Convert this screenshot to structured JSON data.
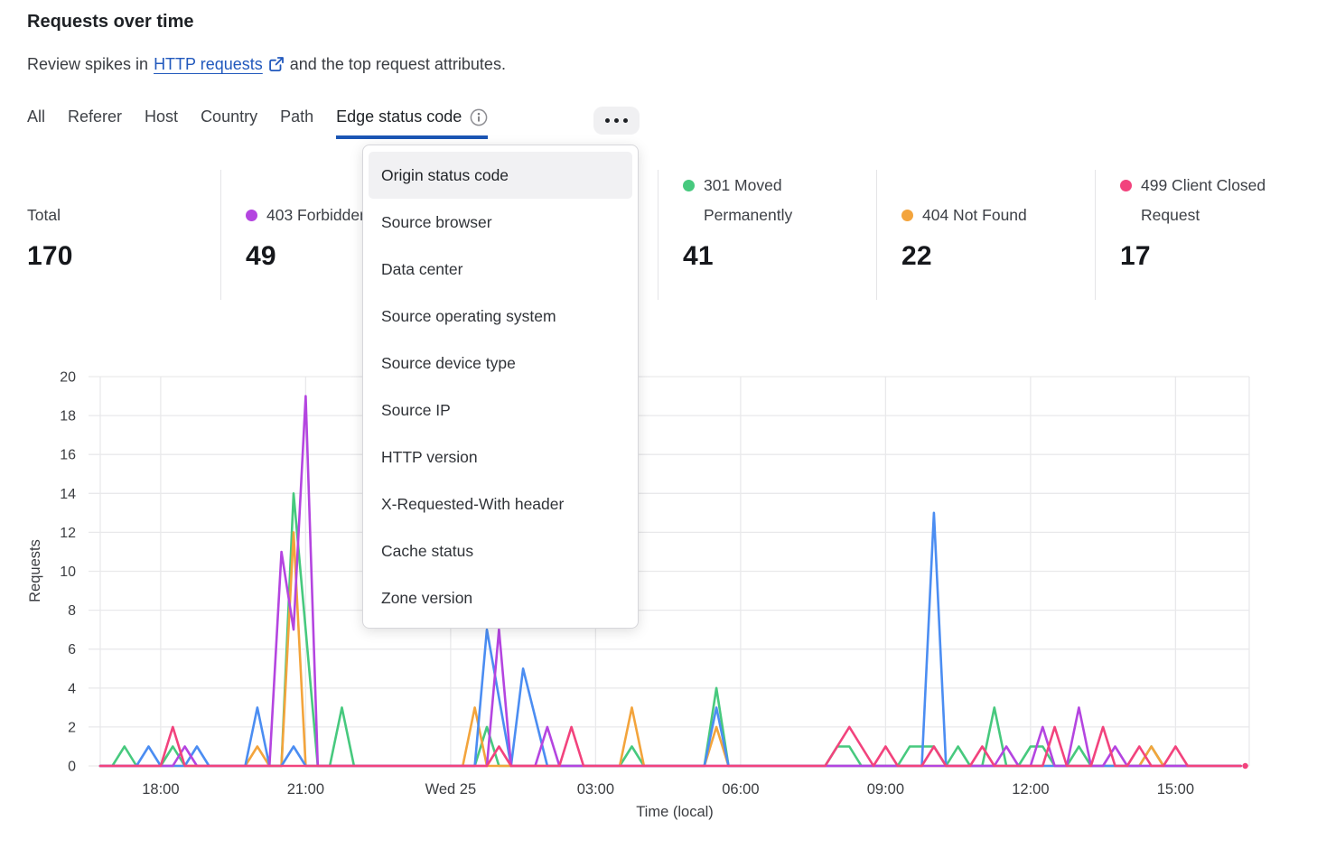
{
  "header": {
    "title": "Requests over time",
    "subtitle_prefix": "Review spikes in",
    "subtitle_link": "HTTP requests",
    "subtitle_suffix": "and the top request attributes."
  },
  "tabs": {
    "items": [
      "All",
      "Referer",
      "Host",
      "Country",
      "Path"
    ],
    "active_label": "Edge status code",
    "icons": {
      "active_info": "info-icon",
      "overflow": "more-horizontal-icon"
    }
  },
  "stats": {
    "columns": [
      {
        "label": "Total",
        "value": "170",
        "color": null
      },
      {
        "label": "403 Forbidden",
        "value": "49",
        "color": "#b445e0"
      },
      {
        "label": "301 Moved Permanently",
        "value": "41",
        "color": "#47c97e"
      },
      {
        "label": "404 Not Found",
        "value": "22",
        "color": "#f3a43c"
      },
      {
        "label": "499 Client Closed Request",
        "value": "17",
        "color": "#f2437d"
      }
    ]
  },
  "menu": {
    "active_index": 0,
    "items": [
      "Origin status code",
      "Source browser",
      "Data center",
      "Source operating system",
      "Source device type",
      "Source IP",
      "HTTP version",
      "X-Requested-With header",
      "Cache status",
      "Zone version"
    ]
  },
  "colors": {
    "accent_blue": "#1b55b4",
    "link_blue": "#2259bd",
    "grid": "#e9e9eb",
    "axis_text": "#3b3d41"
  },
  "chart_data": {
    "type": "line",
    "title": "Requests over time",
    "grid": true,
    "legend_position": "top-stats-row",
    "x_axis": {
      "label": "Time (local)",
      "start_time": "16:45",
      "end_t_hours": 23.6,
      "ticks": [
        {
          "t": 1.25,
          "label": "18:00"
        },
        {
          "t": 4.25,
          "label": "21:00"
        },
        {
          "t": 7.25,
          "label": "Wed 25"
        },
        {
          "t": 10.25,
          "label": "03:00"
        },
        {
          "t": 13.25,
          "label": "06:00"
        },
        {
          "t": 16.25,
          "label": "09:00"
        },
        {
          "t": 19.25,
          "label": "12:00"
        },
        {
          "t": 22.25,
          "label": "15:00"
        }
      ]
    },
    "y_axis": {
      "label": "Requests",
      "min": 0,
      "max": 20,
      "step": 2
    },
    "series": [
      {
        "id": "301",
        "label": "301 Moved Permanently",
        "color": "#47c97e",
        "points": [
          [
            0.25,
            0
          ],
          [
            0.5,
            1
          ],
          [
            0.75,
            0
          ],
          [
            1.25,
            0
          ],
          [
            1.5,
            1
          ],
          [
            1.75,
            0
          ],
          [
            3.75,
            0
          ],
          [
            4,
            14
          ],
          [
            4.5,
            0
          ],
          [
            4.75,
            0
          ],
          [
            5,
            3
          ],
          [
            5.25,
            0
          ],
          [
            7.75,
            0
          ],
          [
            8,
            2
          ],
          [
            8.25,
            0
          ],
          [
            10.75,
            0
          ],
          [
            11,
            1
          ],
          [
            11.25,
            0
          ],
          [
            12.5,
            0
          ],
          [
            12.75,
            4
          ],
          [
            13,
            0
          ],
          [
            15,
            0
          ],
          [
            15.25,
            1
          ],
          [
            15.5,
            1
          ],
          [
            15.75,
            0
          ],
          [
            16.5,
            0
          ],
          [
            16.75,
            1
          ],
          [
            17.25,
            1
          ],
          [
            17.5,
            0
          ],
          [
            17.75,
            1
          ],
          [
            18,
            0
          ],
          [
            18.25,
            0
          ],
          [
            18.5,
            3
          ],
          [
            18.75,
            0
          ],
          [
            19,
            0
          ],
          [
            19.25,
            1
          ],
          [
            19.5,
            1
          ],
          [
            19.75,
            0
          ],
          [
            20,
            0
          ],
          [
            20.25,
            1
          ],
          [
            20.5,
            0
          ],
          [
            21.5,
            0
          ],
          [
            21.75,
            1
          ],
          [
            22,
            0
          ]
        ]
      },
      {
        "id": "404",
        "label": "404 Not Found",
        "color": "#f3a43c",
        "points": [
          [
            3,
            0
          ],
          [
            3.25,
            1
          ],
          [
            3.5,
            0
          ],
          [
            3.75,
            0
          ],
          [
            4,
            12
          ],
          [
            4.25,
            0
          ],
          [
            7.5,
            0
          ],
          [
            7.75,
            3
          ],
          [
            8,
            0
          ],
          [
            10.75,
            0
          ],
          [
            11,
            3
          ],
          [
            11.25,
            0
          ],
          [
            12.5,
            0
          ],
          [
            12.75,
            2
          ],
          [
            13,
            0
          ],
          [
            21.5,
            0
          ],
          [
            21.75,
            1
          ],
          [
            22,
            0
          ]
        ]
      },
      {
        "id": "blue",
        "label": "",
        "color": "#4b8df2",
        "points": [
          [
            0.75,
            0
          ],
          [
            1,
            1
          ],
          [
            1.25,
            0
          ],
          [
            1.75,
            0
          ],
          [
            2,
            1
          ],
          [
            2.25,
            0
          ],
          [
            3,
            0
          ],
          [
            3.25,
            3
          ],
          [
            3.5,
            0
          ],
          [
            3.75,
            0
          ],
          [
            4,
            1
          ],
          [
            4.25,
            0
          ],
          [
            7.75,
            0
          ],
          [
            8,
            7
          ],
          [
            8.5,
            0
          ],
          [
            8.75,
            5
          ],
          [
            9.25,
            0
          ],
          [
            12.5,
            0
          ],
          [
            12.75,
            3
          ],
          [
            13,
            0
          ],
          [
            17,
            0
          ],
          [
            17.25,
            13
          ],
          [
            17.5,
            0
          ]
        ]
      },
      {
        "id": "403",
        "label": "403 Forbidden",
        "color": "#b445e0",
        "points": [
          [
            1.5,
            0
          ],
          [
            1.75,
            1
          ],
          [
            2,
            0
          ],
          [
            3.5,
            0
          ],
          [
            3.75,
            11
          ],
          [
            4,
            7
          ],
          [
            4.25,
            19
          ],
          [
            4.5,
            0
          ],
          [
            8,
            0
          ],
          [
            8.25,
            7
          ],
          [
            8.5,
            0
          ],
          [
            9,
            0
          ],
          [
            9.25,
            2
          ],
          [
            9.5,
            0
          ],
          [
            18.5,
            0
          ],
          [
            18.75,
            1
          ],
          [
            19,
            0
          ],
          [
            19.25,
            0
          ],
          [
            19.5,
            2
          ],
          [
            19.75,
            0
          ],
          [
            20,
            0
          ],
          [
            20.25,
            3
          ],
          [
            20.5,
            0
          ],
          [
            20.75,
            0
          ],
          [
            21,
            1
          ],
          [
            21.25,
            0
          ]
        ]
      },
      {
        "id": "499",
        "label": "499 Client Closed Request",
        "color": "#f2437d",
        "end_marker": "dot",
        "points": [
          [
            1.25,
            0
          ],
          [
            1.5,
            2
          ],
          [
            1.75,
            0
          ],
          [
            8,
            0
          ],
          [
            8.25,
            1
          ],
          [
            8.5,
            0
          ],
          [
            9.5,
            0
          ],
          [
            9.75,
            2
          ],
          [
            10,
            0
          ],
          [
            15,
            0
          ],
          [
            15.5,
            2
          ],
          [
            16,
            0
          ],
          [
            16.25,
            1
          ],
          [
            16.5,
            0
          ],
          [
            17,
            0
          ],
          [
            17.25,
            1
          ],
          [
            17.5,
            0
          ],
          [
            18,
            0
          ],
          [
            18.25,
            1
          ],
          [
            18.5,
            0
          ],
          [
            19.5,
            0
          ],
          [
            19.75,
            2
          ],
          [
            20,
            0
          ],
          [
            20.5,
            0
          ],
          [
            20.75,
            2
          ],
          [
            21,
            0
          ],
          [
            21.25,
            0
          ],
          [
            21.5,
            1
          ],
          [
            21.75,
            0
          ],
          [
            22,
            0
          ],
          [
            22.25,
            1
          ],
          [
            22.5,
            0
          ]
        ]
      }
    ]
  }
}
